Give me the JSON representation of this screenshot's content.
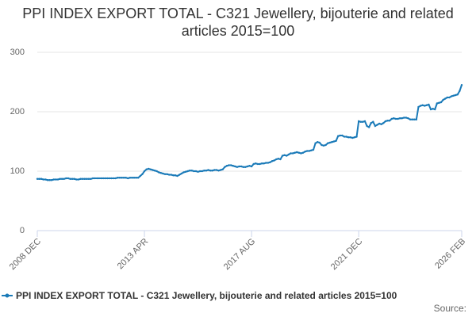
{
  "chart_data": {
    "type": "line",
    "title": "PPI INDEX EXPORT TOTAL - C321 Jewellery, bijouterie and related articles 2015=100",
    "source": "Source:",
    "ylim": [
      0,
      300
    ],
    "yticks": [
      0,
      100,
      200,
      300
    ],
    "grid": true,
    "legend": "bottom",
    "categories": [
      "2008 DEC",
      null,
      null,
      null,
      null,
      null,
      null,
      null,
      null,
      null,
      null,
      null,
      null,
      null,
      null,
      null,
      null,
      null,
      null,
      null,
      null,
      null,
      null,
      null,
      null,
      null,
      null,
      null,
      null,
      null,
      null,
      null,
      null,
      null,
      null,
      null,
      null,
      null,
      null,
      null,
      null,
      null,
      null,
      null,
      null,
      null,
      null,
      null,
      null,
      null,
      null,
      null,
      "2013 APR",
      null,
      null,
      null,
      null,
      null,
      null,
      null,
      null,
      null,
      null,
      null,
      null,
      null,
      null,
      null,
      null,
      null,
      null,
      null,
      null,
      null,
      null,
      null,
      null,
      null,
      null,
      null,
      null,
      null,
      null,
      null,
      null,
      null,
      null,
      null,
      null,
      null,
      null,
      null,
      null,
      null,
      null,
      null,
      null,
      null,
      null,
      null,
      null,
      null,
      null,
      null,
      "2017 AUG",
      null,
      null,
      null,
      null,
      null,
      null,
      null,
      null,
      null,
      null,
      null,
      null,
      null,
      null,
      null,
      null,
      null,
      null,
      null,
      null,
      null,
      null,
      null,
      null,
      null,
      null,
      null,
      null,
      null,
      null,
      null,
      null,
      null,
      null,
      null,
      null,
      null,
      null,
      null,
      null,
      null,
      null,
      null,
      null,
      null,
      null,
      null,
      null,
      null,
      null,
      null,
      "2021 DEC",
      null,
      null,
      null,
      null,
      null,
      null,
      null,
      null,
      null,
      null,
      null,
      null,
      null,
      null,
      null,
      null,
      null,
      null,
      null,
      null,
      null,
      null,
      null,
      null,
      null,
      null,
      null,
      null,
      null,
      null,
      null,
      null,
      null,
      null,
      null,
      null,
      null,
      null,
      null,
      null,
      null,
      null,
      null,
      null,
      null,
      null,
      null,
      null,
      null,
      "2026 FEB"
    ],
    "series": [
      {
        "name": "PPI INDEX EXPORT TOTAL - C321 Jewellery, bijouterie and related articles 2015=100",
        "color": "#1a7ab8",
        "values": [
          87,
          87,
          87,
          86,
          86,
          85,
          85,
          85,
          86,
          86,
          86,
          87,
          87,
          87,
          88,
          88,
          87,
          87,
          87,
          86,
          86,
          87,
          87,
          87,
          87,
          87,
          87,
          88,
          88,
          88,
          88,
          88,
          88,
          88,
          88,
          88,
          88,
          88,
          88,
          89,
          89,
          89,
          89,
          89,
          88,
          89,
          89,
          89,
          89,
          89,
          92,
          95,
          100,
          103,
          104,
          103,
          102,
          101,
          100,
          98,
          97,
          96,
          95,
          95,
          94,
          94,
          93,
          93,
          92,
          94,
          96,
          98,
          99,
          100,
          101,
          101,
          100,
          100,
          99,
          100,
          100,
          101,
          101,
          102,
          101,
          101,
          102,
          102,
          101,
          102,
          103,
          107,
          109,
          110,
          110,
          109,
          108,
          107,
          108,
          108,
          107,
          107,
          108,
          109,
          108,
          112,
          113,
          112,
          112,
          113,
          113,
          114,
          114,
          115,
          117,
          118,
          120,
          121,
          120,
          126,
          127,
          126,
          128,
          130,
          130,
          131,
          132,
          131,
          130,
          131,
          133,
          134,
          134,
          135,
          136,
          147,
          149,
          148,
          144,
          143,
          144,
          147,
          148,
          149,
          150,
          151,
          159,
          160,
          160,
          158,
          158,
          157,
          157,
          156,
          157,
          158,
          184,
          183,
          183,
          184,
          176,
          174,
          181,
          183,
          176,
          178,
          180,
          179,
          181,
          184,
          185,
          185,
          188,
          189,
          188,
          188,
          189,
          189,
          190,
          190,
          189,
          187,
          187,
          187,
          187,
          208,
          210,
          211,
          210,
          211,
          212,
          204,
          205,
          204,
          214,
          215,
          216,
          220,
          222,
          224,
          224,
          226,
          227,
          228,
          229,
          235,
          245
        ]
      }
    ]
  }
}
